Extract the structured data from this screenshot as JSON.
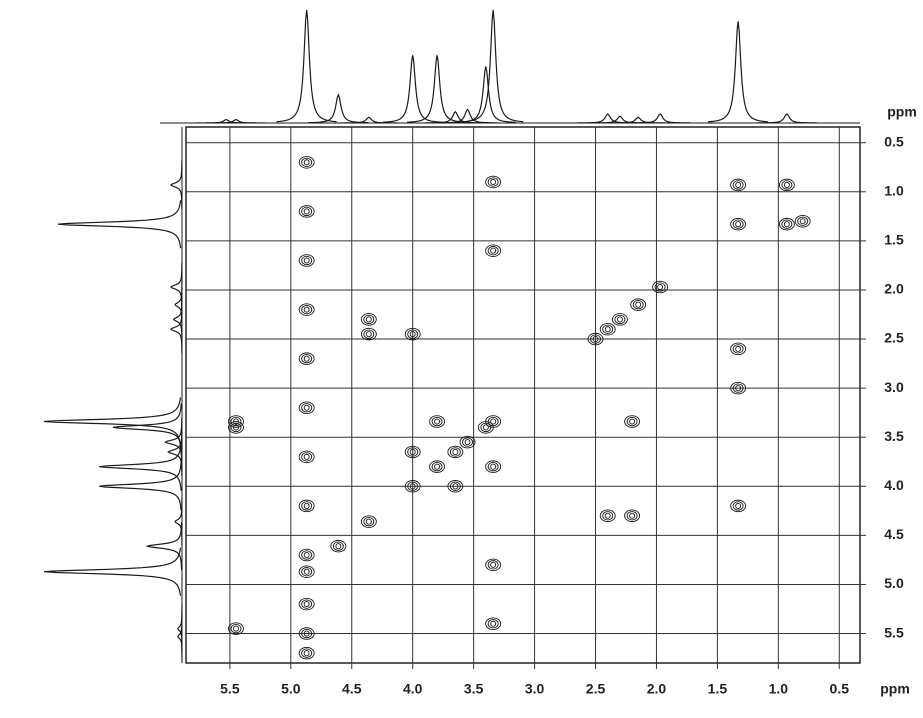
{
  "chart_data": {
    "type": "contour",
    "x_label": "ppm",
    "y_label": "ppm",
    "xlim": [
      5.86,
      0.33
    ],
    "ylim": [
      0.34,
      5.8
    ],
    "xticks": [
      5.5,
      {
        "value": 5,
        "label": "5.0"
      },
      4.5,
      {
        "value": 4,
        "label": "4.0"
      },
      3.5,
      {
        "value": 3,
        "label": "3.0"
      },
      2.5,
      {
        "value": 2,
        "label": "2.0"
      },
      1.5,
      {
        "value": 1,
        "label": "1.0"
      },
      0.5
    ],
    "yticks": [
      0.5,
      {
        "value": 1,
        "label": "1.0"
      },
      1.5,
      {
        "value": 2,
        "label": "2.0"
      },
      2.5,
      {
        "value": 3,
        "label": "3.0"
      },
      3.5,
      {
        "value": 4,
        "label": "4.0"
      },
      4.5,
      {
        "value": 5,
        "label": "5.0"
      },
      5.5
    ],
    "grid": true,
    "color": "#1a1a1a",
    "peaks": {
      "ppm": [
        5.53,
        5.45,
        4.87,
        4.61,
        4.36,
        4.0,
        3.8,
        3.65,
        3.55,
        3.4,
        3.34,
        2.4,
        2.3,
        2.15,
        1.97,
        1.33,
        0.93
      ],
      "height": [
        3,
        3,
        100,
        25,
        5,
        60,
        60,
        10,
        12,
        50,
        100,
        8,
        6,
        5,
        8,
        90,
        8
      ]
    },
    "cross_peaks": {
      "x": [
        0.93,
        1.33,
        1.97,
        2.15,
        2.3,
        2.4,
        2.5,
        3.34,
        3.4,
        3.55,
        3.65,
        3.8,
        4.0,
        4.36,
        4.61,
        4.87,
        5.45,
        1.33,
        0.93,
        3.8,
        3.34,
        4.0,
        3.65,
        4.36,
        4.36,
        2.4,
        2.2,
        5.45,
        5.45,
        4.0,
        3.34,
        4.87,
        4.87,
        4.87,
        4.87,
        4.87,
        4.87,
        4.87,
        4.87,
        4.87,
        4.87,
        4.87,
        4.87,
        3.34,
        3.34,
        3.34,
        1.33,
        1.33,
        1.33,
        0.8,
        2.2
      ],
      "y": [
        0.93,
        1.33,
        1.97,
        2.15,
        2.3,
        2.4,
        2.5,
        3.34,
        3.4,
        3.55,
        3.65,
        3.8,
        4.0,
        4.36,
        4.61,
        4.87,
        5.45,
        0.93,
        1.33,
        3.34,
        3.8,
        3.65,
        4.0,
        2.3,
        2.45,
        4.3,
        4.3,
        3.34,
        3.4,
        2.45,
        0.9,
        0.7,
        1.2,
        1.7,
        2.2,
        2.7,
        3.2,
        3.7,
        4.2,
        4.7,
        5.2,
        5.5,
        5.7,
        1.6,
        4.8,
        5.4,
        2.6,
        3.0,
        4.2,
        1.3,
        3.34
      ]
    }
  }
}
